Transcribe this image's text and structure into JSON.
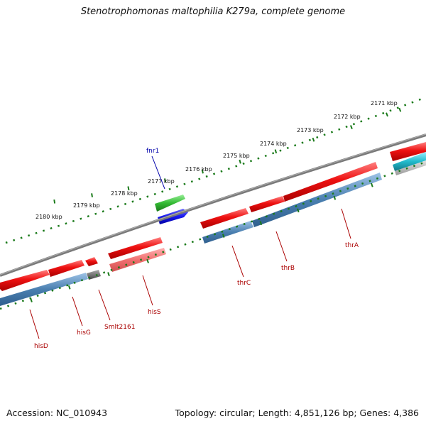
{
  "title": "Stenotrophomonas maltophilia K279a, complete genome",
  "accession_text": "Accession: NC_010943",
  "summary_text": "Topology: circular; Length: 4,851,126 bp; Genes: 4,386",
  "scale_labels": [
    "2171 kbp",
    "2172 kbp",
    "2173 kbp",
    "2174 kbp",
    "2175 kbp",
    "2176 kbp",
    "2177 kbp",
    "2178 kbp",
    "2179 kbp",
    "2180 kbp"
  ],
  "gene_labels": {
    "fnr1": "fnr1",
    "thrA": "thrA",
    "thrB": "thrB",
    "thrC": "thrC",
    "hisS": "hisS",
    "smlt2161": "Smlt2161",
    "hisG": "hisG",
    "hisD": "hisD"
  },
  "colors": {
    "backbone": "#808080",
    "cds_forward": "#ee1111",
    "cds_forward_light": "#f08080",
    "cds_track": "#4a7fb0",
    "gene_green": "#33bb33",
    "gene_blue": "#1818ee",
    "gene_cyan": "#22bbcc",
    "gene_dark": "#666666",
    "tick": "#1a7a1a",
    "label_red": "#aa0000",
    "label_blue": "#0000aa"
  }
}
